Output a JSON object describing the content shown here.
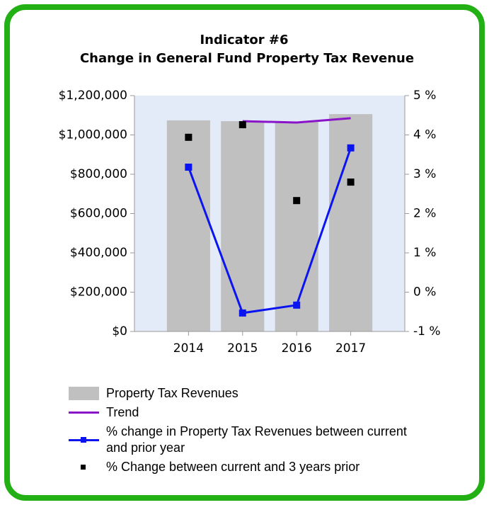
{
  "chart_data": {
    "type": "bar",
    "title": "Indicator #6",
    "subtitle": "Change in General Fund Property Tax Revenue",
    "categories": [
      "2014",
      "2015",
      "2016",
      "2017"
    ],
    "series": [
      {
        "name": "Property Tax Revenues",
        "type": "bar",
        "color": "#c0c0c0",
        "axis": "y",
        "values": [
          1074000,
          1070000,
          1067000,
          1106000
        ]
      },
      {
        "name": "Trend",
        "type": "line",
        "color": "#8a14c8",
        "axis": "y",
        "values": [
          null,
          1070000,
          1063000,
          1085000
        ]
      },
      {
        "name": "% change in Property Tax Revenues between current and prior year",
        "type": "line-marker",
        "color": "#0a14f0",
        "axis": "y2",
        "values": [
          3.18,
          -0.53,
          -0.33,
          3.67
        ]
      },
      {
        "name": "% Change between current and 3 years prior",
        "type": "scatter",
        "color": "#000000",
        "axis": "y2",
        "values": [
          3.94,
          4.26,
          2.33,
          2.8
        ]
      }
    ],
    "ylim": [
      0,
      1200000
    ],
    "yticks": [
      {
        "value": 0,
        "label": "$0"
      },
      {
        "value": 200000,
        "label": "$200,000"
      },
      {
        "value": 400000,
        "label": "$400,000"
      },
      {
        "value": 600000,
        "label": "$600,000"
      },
      {
        "value": 800000,
        "label": "$800,000"
      },
      {
        "value": 1000000,
        "label": "$1,000,000"
      },
      {
        "value": 1200000,
        "label": "$1,200,000"
      }
    ],
    "y2lim": [
      -1,
      5
    ],
    "y2ticks": [
      {
        "value": -1,
        "label": "-1 %"
      },
      {
        "value": 0,
        "label": "0 %"
      },
      {
        "value": 1,
        "label": "1 %"
      },
      {
        "value": 2,
        "label": "2 %"
      },
      {
        "value": 3,
        "label": "3 %"
      },
      {
        "value": 4,
        "label": "4 %"
      },
      {
        "value": 5,
        "label": "5 %"
      }
    ],
    "grid": false,
    "legend": "bottom"
  }
}
